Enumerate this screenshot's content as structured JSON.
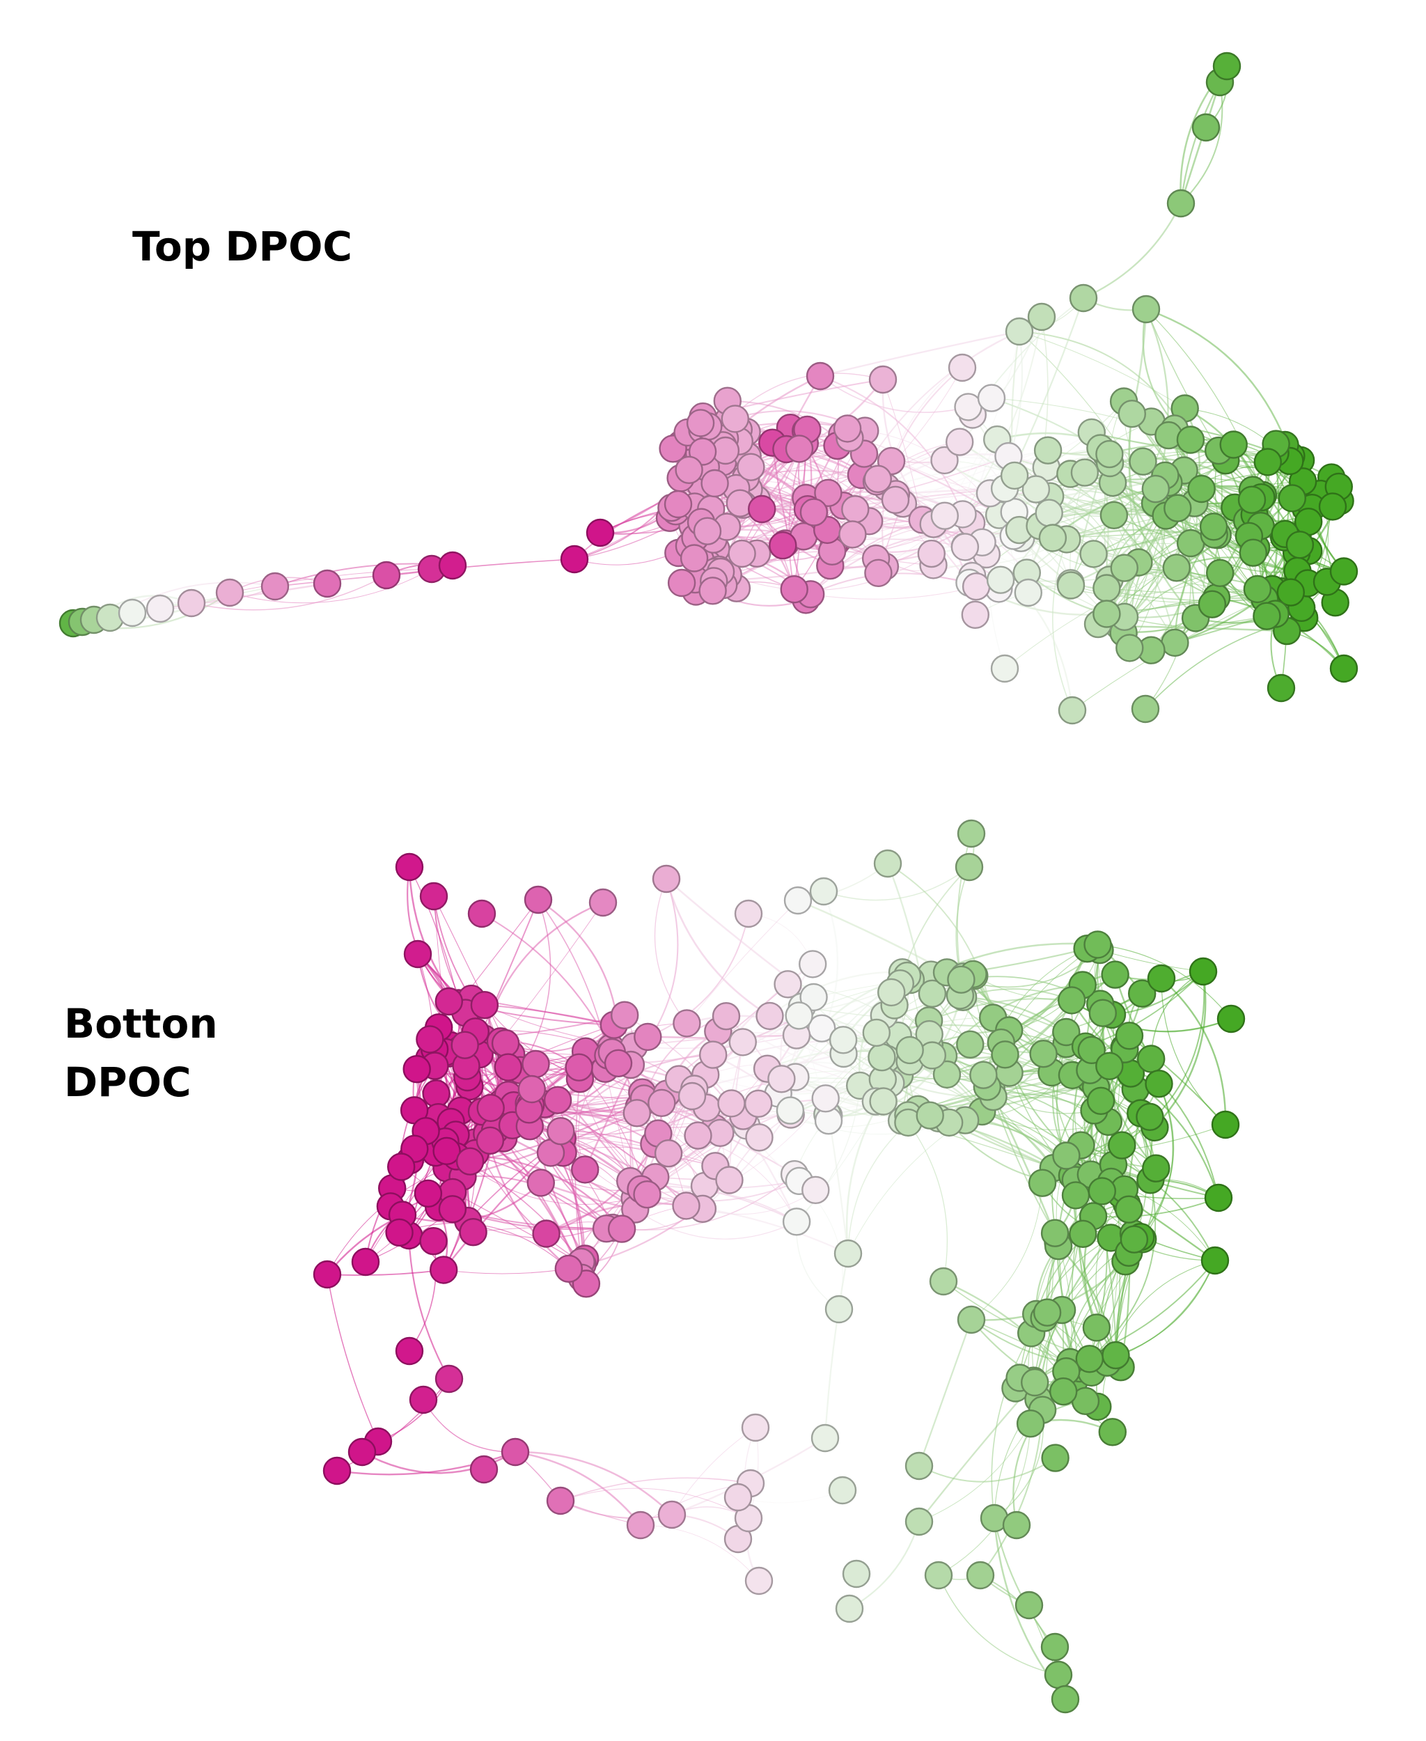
{
  "panels": [
    {
      "id": "top",
      "title": "Top DPOC"
    },
    {
      "id": "bottom",
      "title": "Botton DPOC"
    }
  ],
  "colors": {
    "magenta": "#d0158a",
    "white": "#f7f7f7",
    "green": "#45a824",
    "edge_magenta": "#d63d9a",
    "edge_green": "#6fbf4f"
  }
}
